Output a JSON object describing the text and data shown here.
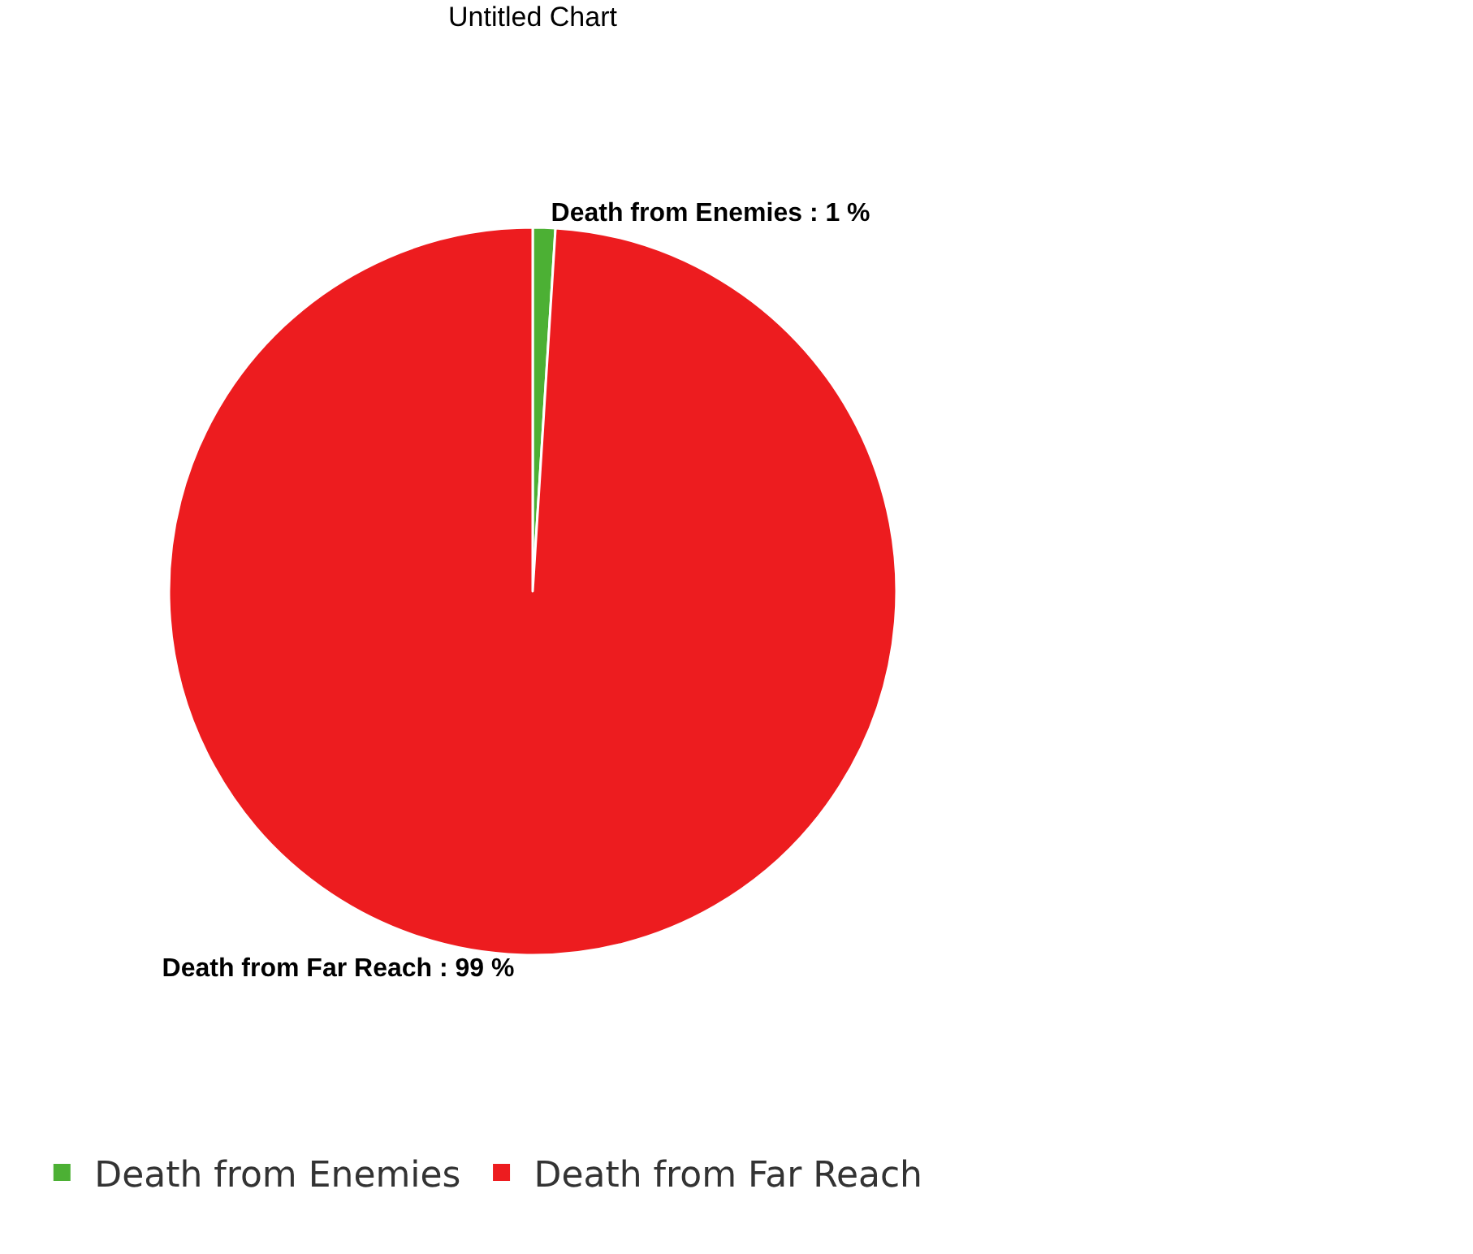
{
  "chart_data": {
    "type": "pie",
    "title": "Untitled Chart",
    "categories": [
      "Death from Enemies",
      "Death from Far Reach"
    ],
    "values": [
      1,
      99
    ],
    "colors": [
      "#4cb034",
      "#ed1c1f"
    ],
    "value_labels": [
      "Death from Enemies : 1 %",
      "Death from Far Reach : 99 %"
    ],
    "legend": "bottom left"
  }
}
